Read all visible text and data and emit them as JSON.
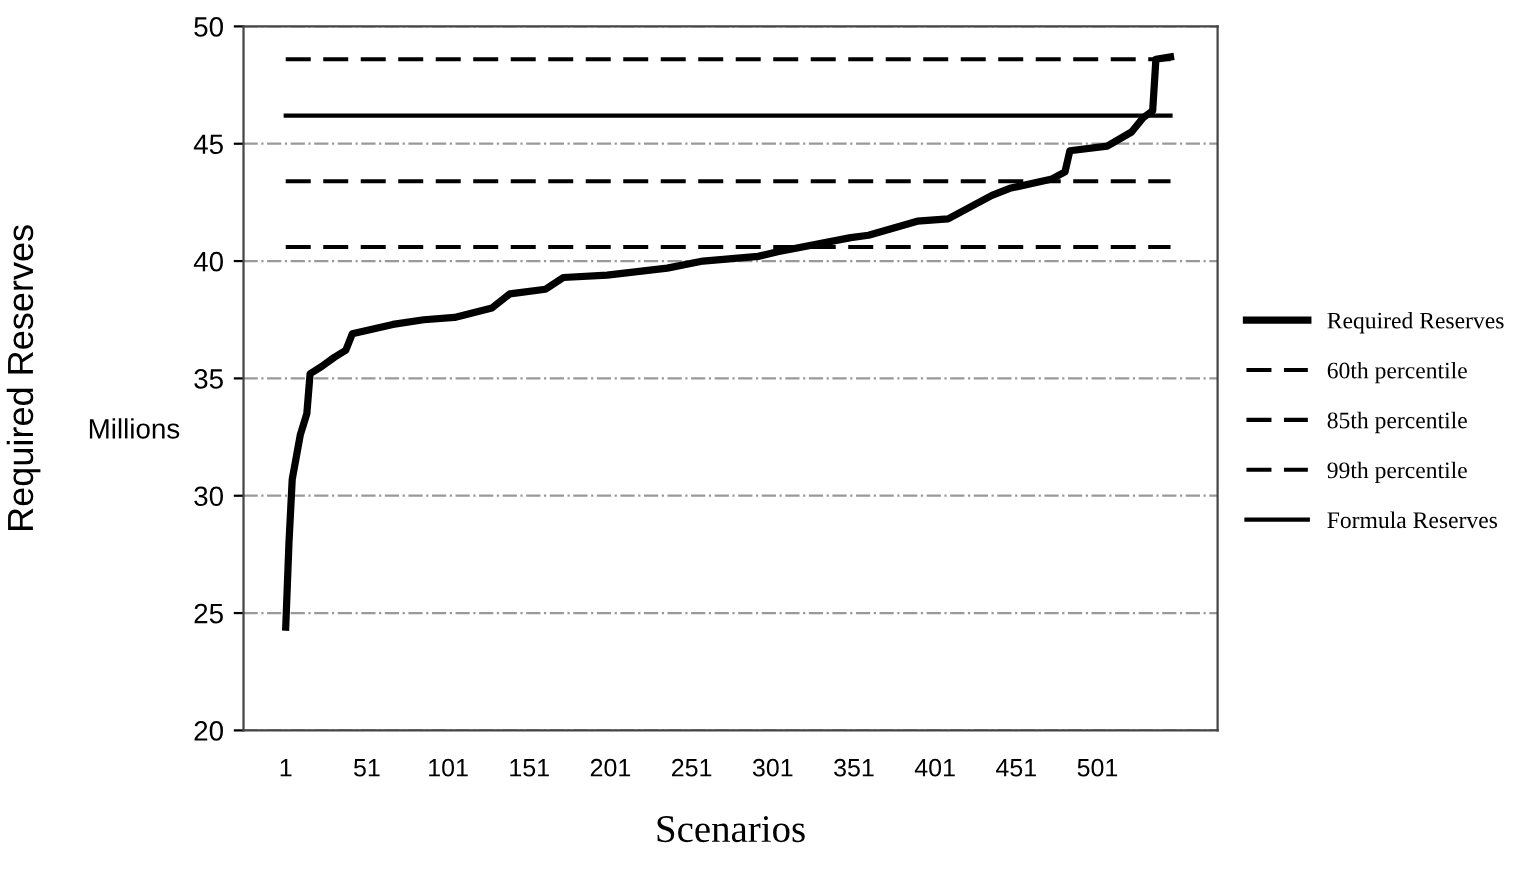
{
  "chart_data": {
    "type": "line",
    "xlabel": "Scenarios",
    "ylabel": "Required Reserves",
    "annotations": [
      "Millions"
    ],
    "xlim": [
      -25,
      575
    ],
    "xticks": [
      1,
      51,
      101,
      151,
      201,
      251,
      301,
      351,
      401,
      451,
      501
    ],
    "ylim": [
      20,
      50
    ],
    "yticks": [
      20,
      25,
      30,
      35,
      40,
      45,
      50
    ],
    "grid": "y",
    "legend": "right",
    "series": [
      {
        "name": "Required Reserves",
        "color": "#000000",
        "line_style": "solid",
        "x": [
          1,
          3,
          5,
          10,
          14,
          16,
          23,
          31,
          38,
          42,
          67,
          86,
          105,
          128,
          139,
          161,
          172,
          199,
          236,
          258,
          292,
          304,
          349,
          360,
          390,
          409,
          436,
          447,
          473,
          481,
          484,
          507,
          522,
          529,
          535,
          537,
          546
        ],
        "values": [
          24.4,
          28.0,
          30.7,
          32.6,
          33.5,
          35.2,
          35.5,
          35.9,
          36.2,
          36.9,
          37.3,
          37.5,
          37.6,
          38.0,
          38.6,
          38.8,
          39.3,
          39.4,
          39.7,
          40.0,
          40.2,
          40.4,
          41.0,
          41.1,
          41.7,
          41.8,
          42.8,
          43.1,
          43.5,
          43.8,
          44.7,
          44.9,
          45.5,
          46.1,
          46.4,
          48.6,
          48.7
        ]
      },
      {
        "name": "60th percentile",
        "color": "#000000",
        "line_style": "dashed",
        "x": [
          1,
          546
        ],
        "values": [
          40.6,
          40.6
        ]
      },
      {
        "name": "85th percentile",
        "color": "#000000",
        "line_style": "dashed",
        "x": [
          1,
          546
        ],
        "values": [
          43.4,
          43.4
        ]
      },
      {
        "name": "99th percentile",
        "color": "#000000",
        "line_style": "dashed",
        "x": [
          1,
          546
        ],
        "values": [
          48.6,
          48.6
        ]
      },
      {
        "name": "Formula Reserves",
        "color": "#000000",
        "line_style": "solid",
        "x": [
          1,
          546
        ],
        "values": [
          46.2,
          46.2
        ]
      }
    ]
  }
}
